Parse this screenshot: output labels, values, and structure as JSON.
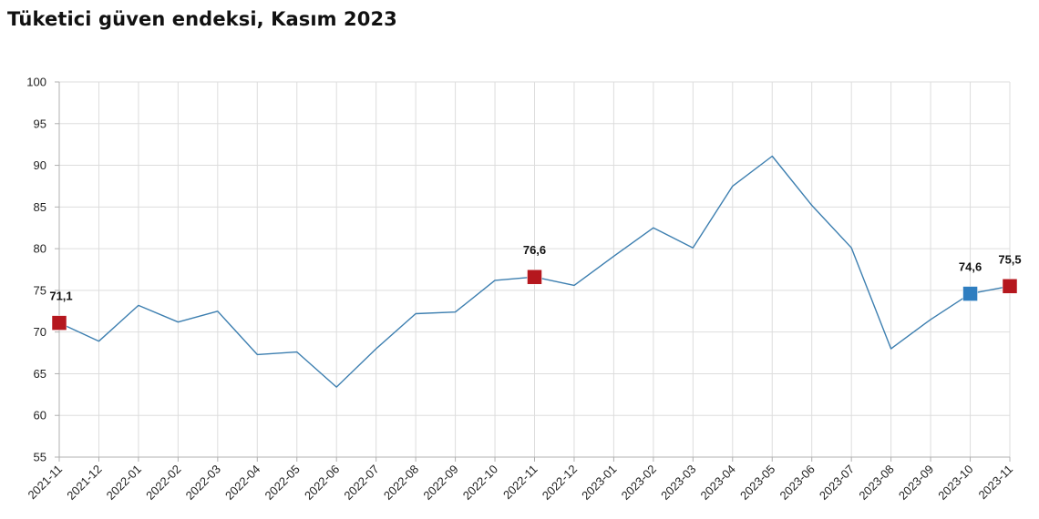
{
  "chart_data": {
    "type": "line",
    "title": "Tüketici güven endeksi, Kasım 2023",
    "xlabel": "",
    "ylabel": "",
    "ylim": [
      55,
      100
    ],
    "yticks": [
      55,
      60,
      65,
      70,
      75,
      80,
      85,
      90,
      95,
      100
    ],
    "grid": true,
    "categories": [
      "2021-11",
      "2021-12",
      "2022-01",
      "2022-02",
      "2022-03",
      "2022-04",
      "2022-05",
      "2022-06",
      "2022-07",
      "2022-08",
      "2022-09",
      "2022-10",
      "2022-11",
      "2022-12",
      "2023-01",
      "2023-02",
      "2023-03",
      "2023-04",
      "2023-05",
      "2023-06",
      "2023-07",
      "2023-08",
      "2023-09",
      "2023-10",
      "2023-11"
    ],
    "series": [
      {
        "values": [
          71.1,
          68.9,
          73.2,
          71.2,
          72.5,
          67.3,
          67.6,
          63.4,
          68.0,
          72.2,
          72.4,
          76.2,
          76.6,
          75.6,
          79.1,
          82.5,
          80.1,
          87.5,
          91.1,
          85.2,
          80.1,
          68.0,
          71.5,
          74.6,
          75.5
        ],
        "color": "#3d7fb0"
      }
    ],
    "highlights": [
      {
        "index": 0,
        "label": "71,1",
        "color": "#b5171e"
      },
      {
        "index": 12,
        "label": "76,6",
        "color": "#b5171e"
      },
      {
        "index": 23,
        "label": "74,6",
        "color": "#2f7ec0"
      },
      {
        "index": 24,
        "label": "75,5",
        "color": "#b5171e"
      }
    ],
    "colors": {
      "grid": "#dddddd",
      "axis": "#b0b0b0"
    }
  }
}
